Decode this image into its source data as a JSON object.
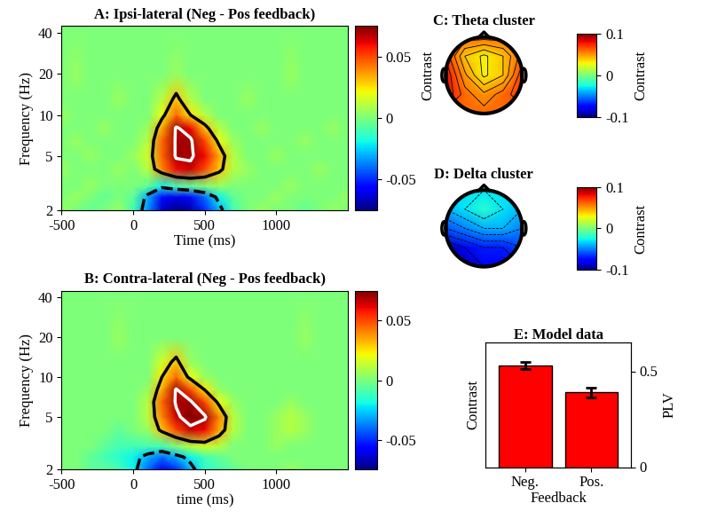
{
  "chart_data": [
    {
      "type": "heatmap",
      "title": "A: Ipsi-lateral (Neg - Pos feedback)",
      "xlabel": "Time (ms)",
      "ylabel": "Frequency (Hz)",
      "x": [
        -500,
        -400,
        -300,
        -200,
        -100,
        0,
        100,
        200,
        300,
        400,
        500,
        600,
        700,
        800,
        900,
        1000,
        1100,
        1200,
        1300,
        1400,
        1500
      ],
      "y": [
        2,
        2.5,
        3,
        4,
        5,
        6.5,
        8,
        10,
        13,
        20,
        45
      ],
      "cells": [
        [
          0.005,
          0,
          -0.005,
          0,
          0.005,
          -0.01,
          -0.035,
          -0.065,
          -0.075,
          -0.07,
          -0.05,
          -0.03,
          -0.01,
          0,
          0.005,
          0,
          0,
          -0.005,
          0,
          0.005,
          0
        ],
        [
          0,
          0.005,
          0,
          -0.005,
          0,
          -0.005,
          -0.03,
          -0.055,
          -0.06,
          -0.055,
          -0.04,
          -0.02,
          -0.005,
          0,
          0,
          0.005,
          0,
          0,
          0,
          0,
          0.005
        ],
        [
          0,
          0,
          0.005,
          0,
          0,
          0,
          -0.005,
          -0.02,
          -0.01,
          -0.005,
          0,
          0.005,
          0,
          0,
          0,
          0,
          0.005,
          0,
          0,
          0,
          0
        ],
        [
          0.005,
          0,
          0,
          0,
          0.005,
          0,
          0.01,
          0.04,
          0.06,
          0.065,
          0.05,
          0.03,
          0.01,
          0.005,
          0,
          0,
          0,
          0,
          0.005,
          0,
          0
        ],
        [
          0,
          0,
          0.005,
          0,
          0,
          0.005,
          0.015,
          0.045,
          0.07,
          0.07,
          0.06,
          0.035,
          0.01,
          0,
          0,
          0.005,
          0,
          0,
          0,
          0,
          0
        ],
        [
          0,
          0.005,
          0,
          0,
          0,
          0,
          0.01,
          0.045,
          0.07,
          0.07,
          0.05,
          0.02,
          0.005,
          0,
          0,
          0,
          0,
          0.005,
          0,
          0,
          0
        ],
        [
          0,
          0,
          0,
          0.005,
          0,
          0,
          0.005,
          0.035,
          0.07,
          0.06,
          0.03,
          0.01,
          0,
          0,
          0.005,
          0,
          0,
          0,
          0,
          0.005,
          0
        ],
        [
          0.005,
          0,
          0,
          0,
          0,
          0,
          0,
          0.02,
          0.045,
          0.025,
          0.01,
          0,
          0,
          0,
          0,
          0,
          0,
          0,
          0,
          0,
          0
        ],
        [
          0,
          0,
          0,
          0,
          0.005,
          0,
          0,
          0.01,
          0.03,
          0.01,
          0,
          0,
          0,
          0.005,
          0,
          0,
          0,
          0,
          0,
          0,
          0
        ],
        [
          0,
          0.005,
          0,
          0,
          0,
          0,
          0,
          0,
          0.005,
          0,
          0,
          0,
          0,
          0,
          0,
          0,
          0.005,
          0,
          0,
          0,
          0
        ],
        [
          0,
          0,
          0,
          0,
          0,
          0,
          0,
          0,
          0,
          0,
          0,
          0,
          0,
          0,
          0,
          0,
          0,
          0,
          0,
          0,
          0
        ]
      ],
      "xlim": [
        -500,
        1500
      ],
      "xticks": [
        -500,
        0,
        500,
        1000
      ],
      "ylim": [
        2,
        45
      ],
      "yticks": [
        2,
        5,
        10,
        20,
        40
      ],
      "log": "y",
      "colorbar_range": [
        -0.075,
        0.075
      ],
      "colorbar_ticks": [
        -0.05,
        0,
        0.05
      ],
      "cluster_levels": [
        -0.025,
        0.025
      ],
      "peak_level": 0.068
    },
    {
      "type": "heatmap",
      "title": "B: Contra-lateral (Neg - Pos feedback)",
      "xlabel": "time (ms)",
      "ylabel": "Frequency (Hz)",
      "x": [
        -500,
        -400,
        -300,
        -200,
        -100,
        0,
        100,
        200,
        300,
        400,
        500,
        600,
        700,
        800,
        900,
        1000,
        1100,
        1200,
        1300,
        1400,
        1500
      ],
      "y": [
        2,
        2.5,
        3,
        4,
        5,
        6.5,
        8,
        10,
        13,
        20,
        45
      ],
      "cells": [
        [
          0,
          0,
          -0.005,
          -0.005,
          -0.01,
          -0.02,
          -0.04,
          -0.06,
          -0.05,
          -0.03,
          -0.015,
          -0.01,
          -0.005,
          0,
          0,
          0,
          0.005,
          0,
          0,
          0,
          0
        ],
        [
          0,
          0,
          -0.005,
          -0.01,
          -0.015,
          -0.02,
          -0.03,
          -0.04,
          -0.03,
          -0.02,
          -0.01,
          -0.005,
          0,
          0,
          0,
          0,
          0,
          0,
          0,
          0,
          0
        ],
        [
          0,
          0,
          0,
          -0.005,
          -0.01,
          -0.01,
          -0.01,
          -0.01,
          0,
          0.01,
          0.015,
          0.01,
          0,
          0,
          0,
          0.005,
          0,
          0,
          0,
          0,
          0
        ],
        [
          0,
          0,
          0,
          0,
          -0.005,
          0,
          0.005,
          0.03,
          0.05,
          0.065,
          0.06,
          0.035,
          0.01,
          0,
          0,
          0.005,
          0.01,
          0.005,
          0,
          0,
          0
        ],
        [
          0,
          0,
          0,
          0,
          0,
          0,
          0.01,
          0.04,
          0.065,
          0.075,
          0.07,
          0.04,
          0.01,
          0,
          0,
          0.005,
          0.01,
          0.005,
          0,
          0,
          0
        ],
        [
          0,
          0,
          0,
          0,
          0,
          0,
          0.01,
          0.045,
          0.07,
          0.07,
          0.05,
          0.02,
          0.005,
          0,
          0,
          0,
          0.005,
          0,
          0,
          0,
          0
        ],
        [
          0,
          0,
          0,
          0,
          0,
          0,
          0.005,
          0.035,
          0.07,
          0.05,
          0.025,
          0.005,
          0,
          0,
          0,
          0,
          0,
          0,
          0,
          0,
          0
        ],
        [
          0,
          0,
          0,
          0,
          0,
          0,
          0,
          0.025,
          0.045,
          0.02,
          0.005,
          0,
          0,
          0,
          0,
          0,
          0,
          0,
          0,
          0,
          0
        ],
        [
          0,
          0,
          0,
          0,
          0,
          0,
          0,
          0.015,
          0.03,
          0.005,
          0,
          0,
          0,
          0,
          0,
          0,
          0,
          0,
          0,
          0,
          0
        ],
        [
          0,
          0,
          0,
          0,
          0.005,
          0,
          0,
          0,
          0,
          0,
          0,
          0,
          0,
          0,
          0,
          0,
          0,
          0.005,
          0,
          0,
          0
        ],
        [
          0,
          0,
          0,
          0,
          0,
          0,
          0,
          0,
          0,
          0,
          0,
          0,
          0,
          0,
          0,
          0,
          0,
          0,
          0,
          0,
          0
        ]
      ],
      "xlim": [
        -500,
        1500
      ],
      "xticks": [
        -500,
        0,
        500,
        1000
      ],
      "ylim": [
        2,
        45
      ],
      "yticks": [
        2,
        5,
        10,
        20,
        40
      ],
      "log": "y",
      "colorbar_range": [
        -0.075,
        0.075
      ],
      "colorbar_ticks": [
        -0.05,
        0,
        0.05
      ],
      "cluster_levels": [
        -0.025,
        0.025
      ],
      "peak_level": 0.068
    },
    {
      "type": "topomap",
      "title": "C: Theta cluster",
      "ylabel": "Contrast",
      "colorbar_label": "Contrast",
      "x": [
        -1,
        -0.5,
        0,
        0.5,
        1
      ],
      "y": [
        -1,
        -0.5,
        0,
        0.5,
        1
      ],
      "cells": [
        [
          0.06,
          0.06,
          0.06,
          0.06,
          0.06
        ],
        [
          0.08,
          0.06,
          0.05,
          0.06,
          0.07
        ],
        [
          0.08,
          0.05,
          0.03,
          0.04,
          0.07
        ],
        [
          0.07,
          0.04,
          0.03,
          0.04,
          0.06
        ],
        [
          0.06,
          0.06,
          0.06,
          0.06,
          0.06
        ]
      ],
      "colorbar_range": [
        -0.1,
        0.1
      ],
      "colorbar_ticks": [
        -0.1,
        0,
        0.1
      ],
      "tick_labels": false
    },
    {
      "type": "topomap",
      "title": "D: Delta cluster",
      "colorbar_label": "Contrast",
      "x": [
        -1,
        -0.5,
        0,
        0.5,
        1
      ],
      "y": [
        -1,
        -0.5,
        0,
        0.5,
        1
      ],
      "cells": [
        [
          -0.09,
          -0.09,
          -0.08,
          -0.08,
          -0.07
        ],
        [
          -0.09,
          -0.08,
          -0.07,
          -0.07,
          -0.06
        ],
        [
          -0.06,
          -0.05,
          -0.04,
          -0.04,
          -0.05
        ],
        [
          -0.04,
          -0.03,
          -0.02,
          -0.03,
          -0.04
        ],
        [
          -0.03,
          -0.03,
          -0.03,
          -0.03,
          -0.03
        ]
      ],
      "colorbar_range": [
        -0.1,
        0.1
      ],
      "colorbar_ticks": [
        -0.1,
        0,
        0.1
      ],
      "tick_labels": false
    },
    {
      "type": "bar",
      "title": "E: Model data",
      "xlabel": "Feedback",
      "ylabel": "Contrast",
      "y2label": "PLV",
      "categories": [
        "Neg.",
        "Pos."
      ],
      "values": [
        0.53,
        0.39
      ],
      "errors": [
        0.02,
        0.025
      ],
      "color": "#ff0000",
      "axis": "y2",
      "y2lim": [
        0,
        0.65
      ],
      "y2ticks": [
        0,
        0.5
      ]
    }
  ]
}
